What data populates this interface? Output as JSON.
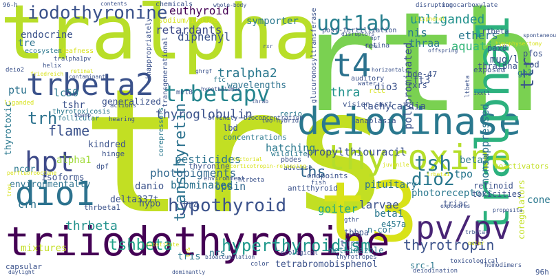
{
  "words": [
    {
      "text": "trs",
      "color": "#c2df23"
    },
    {
      "text": "rth",
      "color": "#7ad151"
    },
    {
      "text": "tralpha",
      "color": "#b8de29"
    },
    {
      "text": "t3",
      "color": "#d8e219"
    },
    {
      "text": "triiodothyronine",
      "color": "#440154"
    },
    {
      "text": "deiodinase",
      "color": "#2a788e"
    },
    {
      "text": "tralpha1",
      "color": "#2cb17e"
    },
    {
      "text": "thyroxine",
      "color": "#b5de2b"
    },
    {
      "text": "dio1",
      "color": "#2c728e"
    },
    {
      "text": "pv/pv",
      "color": "#482475"
    },
    {
      "text": "trbeta2",
      "color": "#3b528b"
    },
    {
      "text": "hpt",
      "color": "#3e4a89"
    },
    {
      "text": "hyperthyroidism",
      "color": "#1f988b"
    },
    {
      "text": "t4",
      "color": "#2c728e"
    },
    {
      "text": "hypothyroid",
      "color": "#3b528b"
    },
    {
      "text": "trbetapv",
      "color": "#25858e"
    },
    {
      "text": "ugt1ab",
      "color": "#277f8e"
    },
    {
      "text": "iodothyronine",
      "color": "#3b528b"
    },
    {
      "text": "dio2",
      "color": "#2a788e"
    },
    {
      "text": "tsh",
      "color": "#2a788e"
    },
    {
      "text": "tshbeta",
      "color": "#1fa187"
    },
    {
      "text": "ttr",
      "color": "#3b528b"
    },
    {
      "text": "thyroglobulin",
      "color": "#3b528b"
    },
    {
      "text": "transthyretin",
      "color": "#2c728e"
    },
    {
      "text": "tralpha2",
      "color": "#2a788e"
    },
    {
      "text": "thyrotropin",
      "color": "#3b528b"
    },
    {
      "text": "trh",
      "color": "#2c728e"
    },
    {
      "text": "flame",
      "color": "#3b528b"
    },
    {
      "text": "thra",
      "color": "#21918c"
    },
    {
      "text": "ths",
      "color": "#31688e"
    },
    {
      "text": "pesticides",
      "color": "#2c728e"
    },
    {
      "text": "photopigments",
      "color": "#31688e"
    },
    {
      "text": "propylthiouracil",
      "color": "#3b528b"
    },
    {
      "text": "polybrominated",
      "color": "#3b528b"
    },
    {
      "text": "nonsuppressed",
      "color": "#2c728e"
    },
    {
      "text": "unliganded",
      "color": "#21918c"
    },
    {
      "text": "euthyroid",
      "color": "#440154"
    },
    {
      "text": "thrbeta",
      "color": "#21918c"
    },
    {
      "text": "pituitary",
      "color": "#2c728e"
    },
    {
      "text": "brominated",
      "color": "#2c728e"
    },
    {
      "text": "goiter",
      "color": "#22a884"
    },
    {
      "text": "symporter",
      "color": "#2a788e"
    },
    {
      "text": "diphenyl",
      "color": "#3b528b"
    },
    {
      "text": "retardants",
      "color": "#3e4a89"
    },
    {
      "text": "nis",
      "color": "#2a788e"
    },
    {
      "text": "thraa",
      "color": "#2a788e"
    },
    {
      "text": "ethers",
      "color": "#2a788e"
    },
    {
      "text": "aquatic",
      "color": "#35b779"
    },
    {
      "text": "mug/l",
      "color": "#3b528b"
    },
    {
      "text": "tpo",
      "color": "#2a788e"
    },
    {
      "text": "larvae",
      "color": "#3b528b"
    },
    {
      "text": "beta1",
      "color": "#2a788e"
    },
    {
      "text": "beta2",
      "color": "#2a788e"
    },
    {
      "text": "hatching",
      "color": "#2a788e"
    },
    {
      "text": "opsin",
      "color": "#31688e"
    },
    {
      "text": "tshr",
      "color": "#3b528b"
    },
    {
      "text": "lc50",
      "color": "#2a788e"
    },
    {
      "text": "ptu",
      "color": "#2c728e"
    },
    {
      "text": "alpha1",
      "color": "#a0da39"
    },
    {
      "text": "dio3",
      "color": "#3b528b"
    },
    {
      "text": "ft3",
      "color": "#3b528b"
    },
    {
      "text": "ft4",
      "color": "#3b528b"
    },
    {
      "text": "crh",
      "color": "#2c728e"
    },
    {
      "text": "danio",
      "color": "#3b528b"
    },
    {
      "text": "tre",
      "color": "#2c728e"
    },
    {
      "text": "endocrine",
      "color": "#3b528b"
    },
    {
      "text": "thyrotoxic",
      "color": "#2a788e"
    },
    {
      "text": "generalized",
      "color": "#3b528b"
    },
    {
      "text": "wavelengths",
      "color": "#2c728e"
    },
    {
      "text": "tachycardia",
      "color": "#3b528b"
    },
    {
      "text": "photoreceptors",
      "color": "#2a788e"
    },
    {
      "text": "cone",
      "color": "#2a788e"
    },
    {
      "text": "mixtures",
      "color": "#c2df23"
    },
    {
      "text": "tris",
      "color": "#2a788e"
    },
    {
      "text": "nrs",
      "color": "#2a788e"
    },
    {
      "text": "delta337t",
      "color": "#3b528b"
    },
    {
      "text": "hypo",
      "color": "#3b528b"
    },
    {
      "text": "kindred",
      "color": "#3b528b"
    },
    {
      "text": "isoforms",
      "color": "#3b528b"
    },
    {
      "text": "ncor",
      "color": "#2a788e"
    },
    {
      "text": "environmentally",
      "color": "#2c728e"
    },
    {
      "text": "tetrabromobisphenol",
      "color": "#3b528b"
    },
    {
      "text": "methimazole",
      "color": "#2a788e"
    },
    {
      "text": "coregulators",
      "color": "#c2df23"
    },
    {
      "text": "thrs",
      "color": "#3b528b"
    },
    {
      "text": "tbbpa",
      "color": "#3b528b"
    },
    {
      "text": "e457a",
      "color": "#2a788e"
    },
    {
      "text": "n-cor",
      "color": "#2a788e"
    },
    {
      "text": "src-1",
      "color": "#2a788e"
    },
    {
      "text": "triac",
      "color": "#3b528b"
    },
    {
      "text": "retinoid",
      "color": "#3b528b"
    },
    {
      "text": "toxicities",
      "color": "#3b528b"
    },
    {
      "text": "rxrs",
      "color": "#3b528b"
    },
    {
      "text": "bde-47",
      "color": "#3b528b"
    },
    {
      "text": "pax8",
      "color": "#3b528b"
    },
    {
      "text": "thralpha",
      "color": "#3b528b"
    },
    {
      "text": "gh3",
      "color": "#2a788e"
    },
    {
      "text": "rod",
      "color": "#3b528b"
    },
    {
      "text": "pfos",
      "color": "#3b528b"
    },
    {
      "text": "exposed",
      "color": "#3b528b"
    },
    {
      "text": "rtbeta",
      "color": "#3b528b"
    },
    {
      "text": "chemicals",
      "color": "#3b528b"
    },
    {
      "text": "contents",
      "color": "#3b528b"
    },
    {
      "text": "whole-body",
      "color": "#3b528b"
    },
    {
      "text": "disrupting",
      "color": "#3b528b"
    },
    {
      "text": "monocarboxylate",
      "color": "#3b528b"
    },
    {
      "text": "96-h",
      "color": "#3b528b"
    },
    {
      "text": "sodium/iodide",
      "color": "#d8e219"
    },
    {
      "text": "ecosystem",
      "color": "#2a788e"
    },
    {
      "text": "tralpha1pv",
      "color": "#3b528b"
    },
    {
      "text": "helix",
      "color": "#3b528b"
    },
    {
      "text": "deafness",
      "color": "#d8e219"
    },
    {
      "text": "deio2",
      "color": "#3b528b"
    },
    {
      "text": "retinal",
      "color": "#d8e219"
    },
    {
      "text": "contaminant",
      "color": "#3b528b"
    },
    {
      "text": "liganded",
      "color": "#d8e219"
    },
    {
      "text": "thyrotoxicosis",
      "color": "#2a788e"
    },
    {
      "text": "follicular",
      "color": "#2a788e"
    },
    {
      "text": "hearing",
      "color": "#3b528b"
    },
    {
      "text": "actions",
      "color": "#3b528b"
    },
    {
      "text": "affinity",
      "color": "#3b528b"
    },
    {
      "text": "bioconcentration",
      "color": "#3b528b"
    },
    {
      "text": "lbd",
      "color": "#3b528b"
    },
    {
      "text": "concentrations",
      "color": "#2a788e"
    },
    {
      "text": "thyronine",
      "color": "#3b528b"
    },
    {
      "text": "wildlife",
      "color": "#2a788e"
    },
    {
      "text": "corepressors",
      "color": "#2a788e"
    },
    {
      "text": "environment",
      "color": "#3b528b"
    },
    {
      "text": "htrbeta",
      "color": "#3b528b"
    },
    {
      "text": "pbdes",
      "color": "#3b528b"
    },
    {
      "text": "adverse",
      "color": "#3b528b"
    },
    {
      "text": "hinge",
      "color": "#3b528b"
    },
    {
      "text": "dpf",
      "color": "#3b528b"
    },
    {
      "text": "endpoints",
      "color": "#3b528b"
    },
    {
      "text": "antithyroid",
      "color": "#3b528b"
    },
    {
      "text": "fish",
      "color": "#3b528b"
    },
    {
      "text": "thrbeta1",
      "color": "#3b528b"
    },
    {
      "text": "coactivators",
      "color": "#c2df23"
    },
    {
      "text": "toxicological",
      "color": "#3b528b"
    },
    {
      "text": "homodimers",
      "color": "#3b528b"
    },
    {
      "text": "deiodination",
      "color": "#3b528b"
    },
    {
      "text": "ecological",
      "color": "#3b528b"
    },
    {
      "text": "thyrotropes",
      "color": "#3b528b"
    },
    {
      "text": "bioaccumulation",
      "color": "#3b528b"
    },
    {
      "text": "color",
      "color": "#3b528b"
    },
    {
      "text": "capsular",
      "color": "#3b528b"
    },
    {
      "text": "daylight",
      "color": "#3b528b"
    },
    {
      "text": "dominantly",
      "color": "#3b528b"
    },
    {
      "text": "gthr",
      "color": "#3b528b"
    },
    {
      "text": "exposures",
      "color": "#3b528b"
    },
    {
      "text": "proposita",
      "color": "#3b528b"
    },
    {
      "text": "rerio",
      "color": "#2a788e"
    },
    {
      "text": "anaplasia",
      "color": "#3b528b"
    },
    {
      "text": "vision smrt",
      "color": "#3b528b"
    },
    {
      "text": "two-hybrid",
      "color": "#3b528b"
    },
    {
      "text": "rccc",
      "color": "#d8e219"
    },
    {
      "text": "auditory",
      "color": "#3b528b"
    },
    {
      "text": "water",
      "color": "#3b528b"
    },
    {
      "text": "retina",
      "color": "#3b528b"
    },
    {
      "text": "post-fertilization",
      "color": "#3b528b"
    },
    {
      "text": "hpf",
      "color": "#3b528b"
    },
    {
      "text": "bisphenol",
      "color": "#d8e219"
    },
    {
      "text": "offspring",
      "color": "#3b528b"
    },
    {
      "text": "spontaneously",
      "color": "#3b528b"
    },
    {
      "text": "ltbeta",
      "color": "#3b528b"
    },
    {
      "text": "glucuronosyltransferase",
      "color": "#3b528b"
    },
    {
      "text": "inappropriately",
      "color": "#3b528b"
    },
    {
      "text": "transgenerational",
      "color": "#3b528b"
    },
    {
      "text": "hypothalamus",
      "color": "#3b528b"
    },
    {
      "text": "mct8",
      "color": "#3b528b"
    },
    {
      "text": "ftc",
      "color": "#2a788e"
    },
    {
      "text": "ghrgf",
      "color": "#3b528b"
    },
    {
      "text": "rxr",
      "color": "#3b528b"
    },
    {
      "text": "friedreich",
      "color": "#d8e219"
    },
    {
      "text": "corticotropin-releasing",
      "color": "#d8e219"
    },
    {
      "text": "tectorial",
      "color": "#d8e219"
    },
    {
      "text": "substitute",
      "color": "#d8e219"
    },
    {
      "text": "perfluorooctane",
      "color": "#d8e219"
    },
    {
      "text": "trbeta1",
      "color": "#d8e219"
    },
    {
      "text": "trbetal",
      "color": "#3b528b"
    },
    {
      "text": "hypophysectomy",
      "color": "#d8e219"
    },
    {
      "text": "ixxll",
      "color": "#3b528b"
    },
    {
      "text": "horizontal",
      "color": "#3b528b"
    },
    {
      "text": "disruptors",
      "color": "#3b528b"
    },
    {
      "text": "bbamp",
      "color": "#3b528b"
    },
    {
      "text": "thrab",
      "color": "#3b528b"
    },
    {
      "text": "96h",
      "color": "#3b528b"
    },
    {
      "text": "tres",
      "color": "#d8e219"
    },
    {
      "text": "juvenile",
      "color": "#d8e219"
    },
    {
      "text": "tr&",
      "color": "#d8e219"
    },
    {
      "text": "tshs",
      "color": "#3b528b"
    },
    {
      "text": "outer",
      "color": "#d8e219"
    },
    {
      "text": "cchlear",
      "color": "#d8e219"
    }
  ]
}
